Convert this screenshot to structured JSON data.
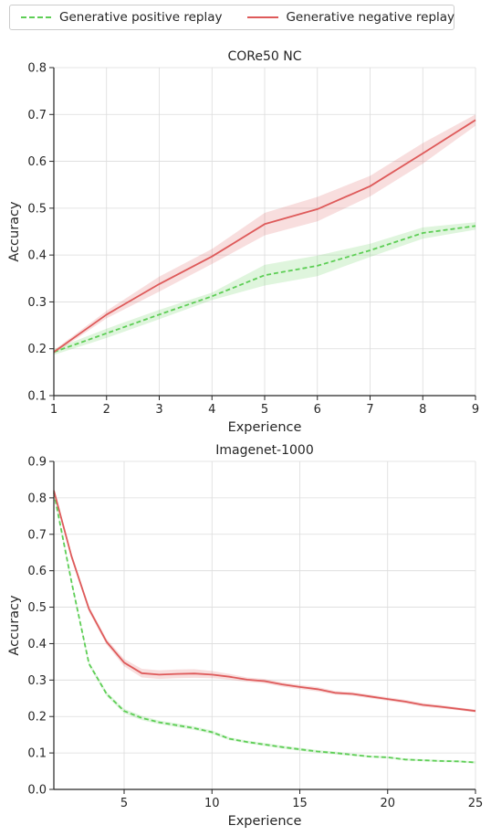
{
  "legend": {
    "positive_label": "Generative positive replay",
    "negative_label": "Generative negative replay"
  },
  "colors": {
    "positive": "#5dce55",
    "negative": "#de5a5a"
  },
  "chart_data": [
    {
      "type": "line",
      "title": "CORe50 NC",
      "xlabel": "Experience",
      "ylabel": "Accuracy",
      "xlim": [
        1,
        9
      ],
      "ylim": [
        0.1,
        0.8
      ],
      "xticks": [
        1,
        2,
        3,
        4,
        5,
        6,
        7,
        8,
        9
      ],
      "yticks": [
        0.1,
        0.2,
        0.3,
        0.4,
        0.5,
        0.6,
        0.7,
        0.8
      ],
      "grid": true,
      "legend_position": "top, outside plot",
      "x": [
        1,
        2,
        3,
        4,
        5,
        6,
        7,
        8,
        9
      ],
      "series": [
        {
          "name": "Generative positive replay",
          "style": "dashed",
          "values": [
            0.193,
            0.233,
            0.273,
            0.312,
            0.357,
            0.377,
            0.41,
            0.447,
            0.462
          ],
          "band": [
            0.006,
            0.01,
            0.01,
            0.008,
            0.022,
            0.022,
            0.014,
            0.012,
            0.008
          ]
        },
        {
          "name": "Generative negative replay",
          "style": "solid",
          "values": [
            0.193,
            0.273,
            0.338,
            0.397,
            0.466,
            0.498,
            0.547,
            0.617,
            0.688
          ],
          "band": [
            0.004,
            0.008,
            0.016,
            0.016,
            0.024,
            0.026,
            0.022,
            0.022,
            0.012
          ]
        }
      ]
    },
    {
      "type": "line",
      "title": "Imagenet-1000",
      "xlabel": "Experience",
      "ylabel": "Accuracy",
      "xlim": [
        1,
        25
      ],
      "ylim": [
        0.0,
        0.9
      ],
      "xticks": [
        5,
        10,
        15,
        20,
        25
      ],
      "yticks": [
        0.0,
        0.1,
        0.2,
        0.3,
        0.4,
        0.5,
        0.6,
        0.7,
        0.8,
        0.9
      ],
      "grid": true,
      "x": [
        1,
        2,
        3,
        4,
        5,
        6,
        7,
        8,
        9,
        10,
        11,
        12,
        13,
        14,
        15,
        16,
        17,
        18,
        19,
        20,
        21,
        22,
        23,
        24,
        25
      ],
      "series": [
        {
          "name": "Generative positive replay",
          "style": "dashed",
          "values": [
            0.815,
            0.57,
            0.345,
            0.262,
            0.215,
            0.196,
            0.184,
            0.176,
            0.168,
            0.157,
            0.139,
            0.13,
            0.123,
            0.116,
            0.11,
            0.104,
            0.1,
            0.095,
            0.09,
            0.088,
            0.082,
            0.08,
            0.078,
            0.077,
            0.074
          ],
          "band": [
            0.006,
            0.006,
            0.006,
            0.006,
            0.006,
            0.006,
            0.005,
            0.005,
            0.005,
            0.005,
            0.004,
            0.004,
            0.004,
            0.004,
            0.004,
            0.004,
            0.004,
            0.003,
            0.003,
            0.003,
            0.003,
            0.003,
            0.003,
            0.003,
            0.003
          ]
        },
        {
          "name": "Generative negative replay",
          "style": "solid",
          "values": [
            0.82,
            0.64,
            0.495,
            0.405,
            0.348,
            0.319,
            0.315,
            0.317,
            0.318,
            0.315,
            0.309,
            0.301,
            0.297,
            0.288,
            0.281,
            0.275,
            0.265,
            0.262,
            0.255,
            0.248,
            0.241,
            0.232,
            0.227,
            0.221,
            0.215
          ],
          "band": [
            0.006,
            0.008,
            0.008,
            0.008,
            0.01,
            0.012,
            0.012,
            0.012,
            0.012,
            0.01,
            0.008,
            0.006,
            0.006,
            0.006,
            0.006,
            0.006,
            0.005,
            0.005,
            0.005,
            0.005,
            0.005,
            0.005,
            0.005,
            0.004,
            0.004
          ]
        }
      ]
    }
  ]
}
